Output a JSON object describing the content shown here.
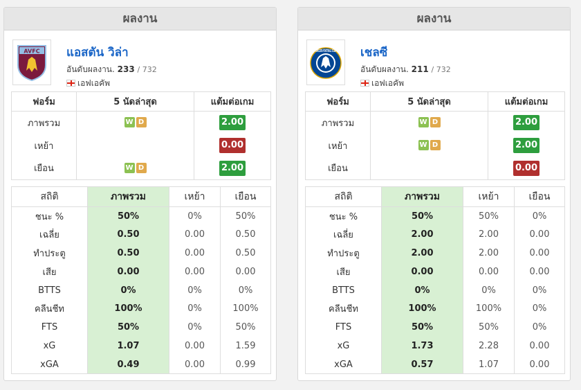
{
  "panels": [
    {
      "header": "ผลงาน",
      "team": {
        "name": "แอสตัน วิล่า",
        "rank_label": "อันดับผลงาน.",
        "rank": "233",
        "rank_total": "/ 732",
        "league": "เอฟเอคัพ",
        "logo_icon": "aston-villa-crest-icon",
        "logo_text": "AVFC"
      },
      "form": {
        "headers": [
          "ฟอร์ม",
          "5 นัดล่าสุด",
          "แต้มต่อเกม"
        ],
        "rows": [
          {
            "label": "ภาพรวม",
            "results": [
              "W",
              "D"
            ],
            "ppg": "2.00",
            "ppg_status": "good"
          },
          {
            "label": "เหย้า",
            "results": [],
            "ppg": "0.00",
            "ppg_status": "bad"
          },
          {
            "label": "เยือน",
            "results": [
              "W",
              "D"
            ],
            "ppg": "2.00",
            "ppg_status": "good"
          }
        ]
      },
      "stats": {
        "headers": [
          "สถิติ",
          "ภาพรวม",
          "เหย้า",
          "เยือน"
        ],
        "rows": [
          [
            "ชนะ %",
            "50%",
            "0%",
            "50%"
          ],
          [
            "เฉลี่ย",
            "0.50",
            "0.00",
            "0.50"
          ],
          [
            "ทำประตู",
            "0.50",
            "0.00",
            "0.50"
          ],
          [
            "เสีย",
            "0.00",
            "0.00",
            "0.00"
          ],
          [
            "BTTS",
            "0%",
            "0%",
            "0%"
          ],
          [
            "คลีนชีท",
            "100%",
            "0%",
            "100%"
          ],
          [
            "FTS",
            "50%",
            "0%",
            "50%"
          ],
          [
            "xG",
            "1.07",
            "0.00",
            "1.59"
          ],
          [
            "xGA",
            "0.49",
            "0.00",
            "0.99"
          ]
        ]
      }
    },
    {
      "header": "ผลงาน",
      "team": {
        "name": "เชลซี",
        "rank_label": "อันดับผลงาน.",
        "rank": "211",
        "rank_total": "/ 732",
        "league": "เอฟเอคัพ",
        "logo_icon": "chelsea-crest-icon",
        "logo_text": "CHELSEA FOOTBALL CLUB"
      },
      "form": {
        "headers": [
          "ฟอร์ม",
          "5 นัดล่าสุด",
          "แต้มต่อเกม"
        ],
        "rows": [
          {
            "label": "ภาพรวม",
            "results": [
              "W",
              "D"
            ],
            "ppg": "2.00",
            "ppg_status": "good"
          },
          {
            "label": "เหย้า",
            "results": [
              "W",
              "D"
            ],
            "ppg": "2.00",
            "ppg_status": "good"
          },
          {
            "label": "เยือน",
            "results": [],
            "ppg": "0.00",
            "ppg_status": "bad"
          }
        ]
      },
      "stats": {
        "headers": [
          "สถิติ",
          "ภาพรวม",
          "เหย้า",
          "เยือน"
        ],
        "rows": [
          [
            "ชนะ %",
            "50%",
            "50%",
            "0%"
          ],
          [
            "เฉลี่ย",
            "2.00",
            "2.00",
            "0.00"
          ],
          [
            "ทำประตู",
            "2.00",
            "2.00",
            "0.00"
          ],
          [
            "เสีย",
            "0.00",
            "0.00",
            "0.00"
          ],
          [
            "BTTS",
            "0%",
            "0%",
            "0%"
          ],
          [
            "คลีนชีท",
            "100%",
            "100%",
            "0%"
          ],
          [
            "FTS",
            "50%",
            "50%",
            "0%"
          ],
          [
            "xG",
            "1.73",
            "2.28",
            "0.00"
          ],
          [
            "xGA",
            "0.57",
            "1.07",
            "0.00"
          ]
        ]
      }
    }
  ]
}
